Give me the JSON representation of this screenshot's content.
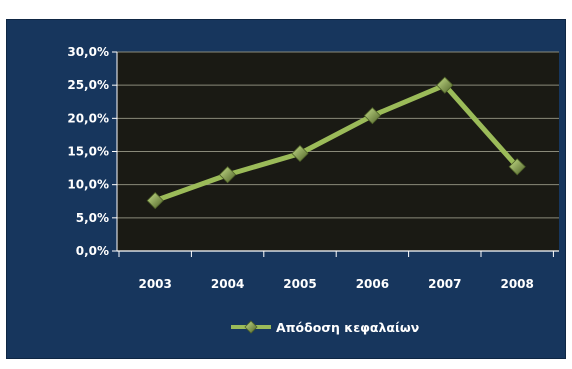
{
  "chart_data": {
    "type": "line",
    "title": "",
    "xlabel": "",
    "ylabel": "",
    "categories": [
      "2003",
      "2004",
      "2005",
      "2006",
      "2007",
      "2008"
    ],
    "series": [
      {
        "name": "Απόδοση κεφαλαίων",
        "values": [
          7.6,
          11.5,
          14.7,
          20.4,
          25.0,
          12.7
        ]
      }
    ],
    "ylim": [
      0,
      30
    ],
    "y_ticks": [
      "0,0%",
      "5,0%",
      "10,0%",
      "15,0%",
      "20,0%",
      "25,0%",
      "30,0%"
    ],
    "grid": true,
    "legend_position": "bottom",
    "colors": {
      "frame_bg": "#17365d",
      "plot_bg": "#1a1a14",
      "line": "#9bbb59",
      "marker_light": "#c6df8a",
      "marker_dark": "#4f6228",
      "grid": "#8a8a7a",
      "axis": "#ffffff"
    }
  }
}
